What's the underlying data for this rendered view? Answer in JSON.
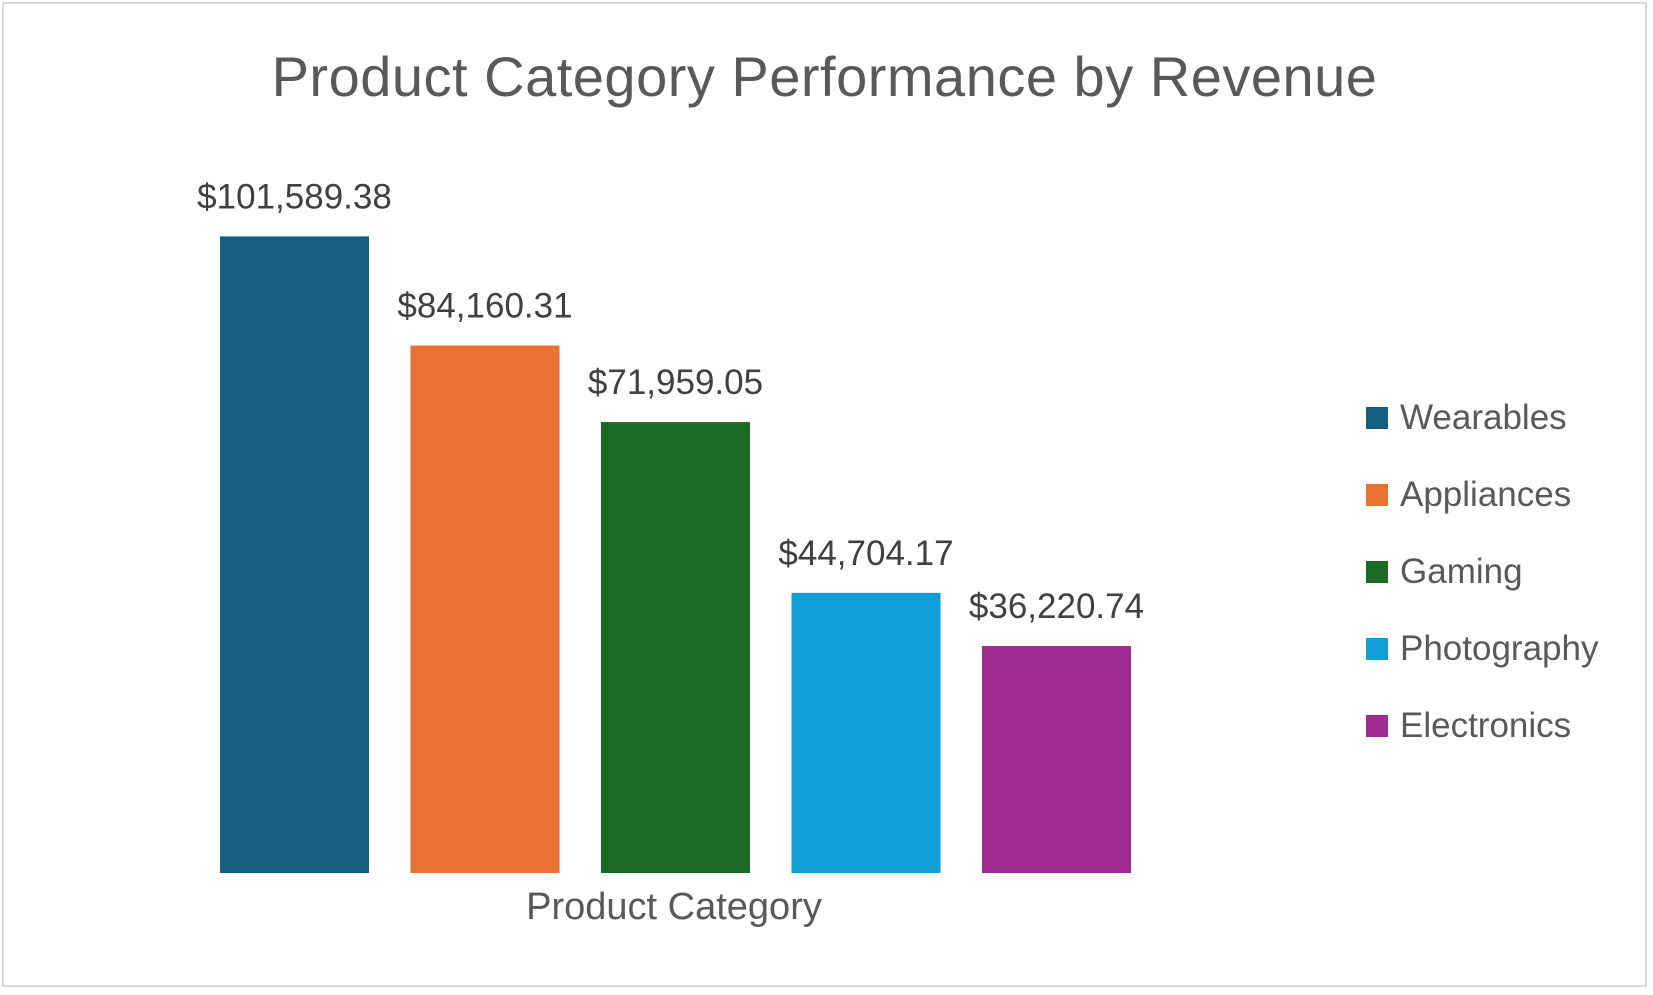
{
  "chart_data": {
    "type": "bar",
    "title": "Product Category Performance by Revenue",
    "xlabel": "Product Category",
    "ylabel": "",
    "categories": [
      "Wearables",
      "Appliances",
      "Gaming",
      "Photography",
      "Electronics"
    ],
    "values": [
      101589.38,
      84160.31,
      71959.05,
      44704.17,
      36220.74
    ],
    "data_labels": [
      "$101,589.38",
      "$84,160.31",
      "$71,959.05",
      "$44,704.17",
      "$36,220.74"
    ],
    "colors": [
      "#175E83",
      "#E97132",
      "#1B6B25",
      "#0F9ED5",
      "#A02B93"
    ],
    "ylim": [
      0,
      120000
    ],
    "grid": false,
    "legend_position": "right"
  }
}
